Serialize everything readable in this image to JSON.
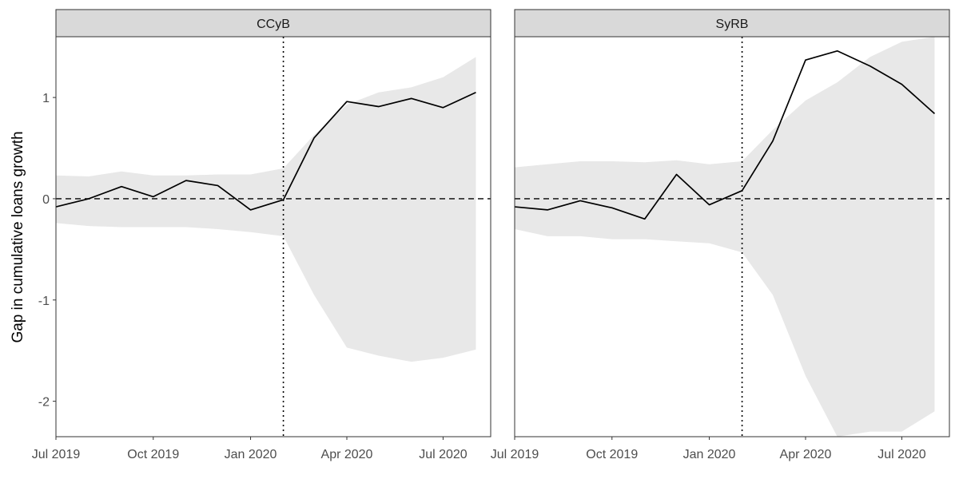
{
  "chart_data": {
    "type": "line",
    "ylabel": "Gap in cumulative loans growth",
    "ylim": [
      -2.35,
      1.6
    ],
    "y_ticks": [
      1,
      0,
      -1,
      -2
    ],
    "y_tick_labels": [
      "1",
      "0",
      "-1",
      "-2"
    ],
    "x_range": [
      "2019-07-01",
      "2020-08-15"
    ],
    "x_ticks": [
      "2019-07-01",
      "2019-10-01",
      "2020-01-01",
      "2020-04-01",
      "2020-07-01"
    ],
    "x_tick_labels": [
      "Jul 2019",
      "Oct 2019",
      "Jan 2020",
      "Apr 2020",
      "Jul 2020"
    ],
    "reference_lines": {
      "horizontal_dashed_y": 0,
      "vertical_dotted_x": "2020-02-01"
    },
    "colors": {
      "panel_border": "#333333",
      "strip_fill": "#d9d9d9",
      "band_fill": "#e8e8e8",
      "line": "#000000"
    },
    "panels": [
      {
        "strip_label": "CCyB",
        "x": [
          "2019-07-01",
          "2019-08-01",
          "2019-09-01",
          "2019-10-01",
          "2019-11-01",
          "2019-12-01",
          "2020-01-01",
          "2020-02-01",
          "2020-03-01",
          "2020-04-01",
          "2020-05-01",
          "2020-06-01",
          "2020-07-01",
          "2020-08-01"
        ],
        "y": [
          -0.08,
          0.0,
          0.12,
          0.02,
          0.18,
          0.13,
          -0.11,
          -0.01,
          0.6,
          0.96,
          0.91,
          0.99,
          0.9,
          1.05
        ],
        "band_upper": [
          0.23,
          0.22,
          0.27,
          0.23,
          0.23,
          0.24,
          0.24,
          0.3,
          0.63,
          0.93,
          1.05,
          1.1,
          1.2,
          1.4
        ],
        "band_lower": [
          -0.24,
          -0.27,
          -0.28,
          -0.28,
          -0.28,
          -0.3,
          -0.33,
          -0.37,
          -0.95,
          -1.47,
          -1.55,
          -1.61,
          -1.57,
          -1.49
        ]
      },
      {
        "strip_label": "SyRB",
        "x": [
          "2019-07-01",
          "2019-08-01",
          "2019-09-01",
          "2019-10-01",
          "2019-11-01",
          "2019-12-01",
          "2020-01-01",
          "2020-02-01",
          "2020-03-01",
          "2020-04-01",
          "2020-05-01",
          "2020-06-01",
          "2020-07-01",
          "2020-08-01"
        ],
        "y": [
          -0.08,
          -0.11,
          -0.02,
          -0.09,
          -0.2,
          0.24,
          -0.06,
          0.08,
          0.57,
          1.37,
          1.46,
          1.31,
          1.13,
          0.84
        ],
        "band_upper": [
          0.31,
          0.34,
          0.37,
          0.37,
          0.36,
          0.38,
          0.34,
          0.37,
          0.68,
          0.97,
          1.15,
          1.4,
          1.55,
          1.6
        ],
        "band_lower": [
          -0.3,
          -0.37,
          -0.37,
          -0.4,
          -0.4,
          -0.42,
          -0.44,
          -0.53,
          -0.95,
          -1.75,
          -2.35,
          -2.3,
          -2.3,
          -2.1
        ]
      }
    ]
  }
}
